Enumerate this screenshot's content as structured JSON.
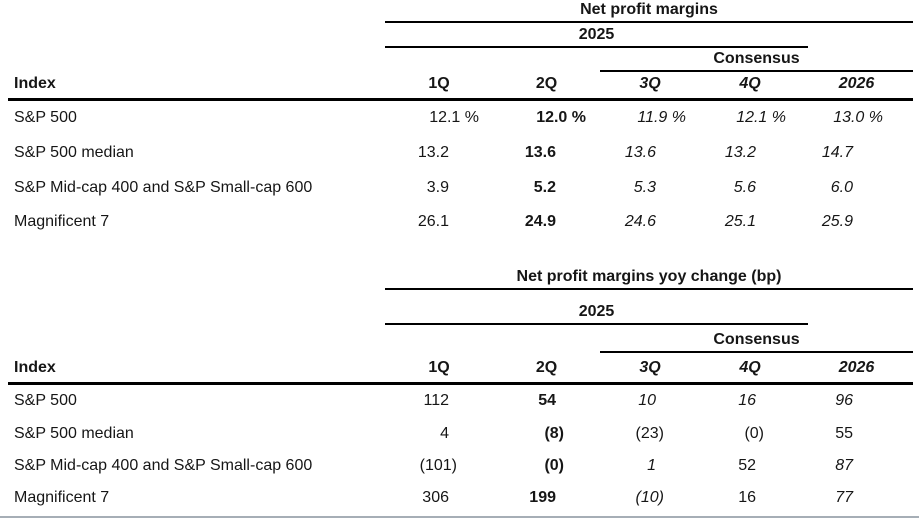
{
  "colors": {
    "highlight": "#aad1ec",
    "footer_rule": "#a6aeb6"
  },
  "tables": [
    {
      "title": "Net profit margins",
      "year_header": "2025",
      "consensus_header": "Consensus",
      "index_header": "Index",
      "columns": [
        {
          "label": "1Q"
        },
        {
          "label": "2Q",
          "highlighted": true
        },
        {
          "label": "3Q",
          "italic": true
        },
        {
          "label": "4Q",
          "italic": true
        },
        {
          "label": "2026",
          "italic": true
        }
      ],
      "rows": [
        {
          "label": "S&P 500",
          "cells": [
            {
              "text": "12.1 %"
            },
            {
              "text": "12.0 %",
              "bold": true
            },
            {
              "text": "11.9 %",
              "italic": true
            },
            {
              "text": "12.1 %",
              "italic": true
            },
            {
              "text": "13.0 %",
              "italic": true
            }
          ]
        },
        {
          "label": "S&P 500 median",
          "cells": [
            {
              "text": "13.2"
            },
            {
              "text": "13.6",
              "bold": true
            },
            {
              "text": "13.6",
              "italic": true
            },
            {
              "text": "13.2",
              "italic": true
            },
            {
              "text": "14.7",
              "italic": true
            }
          ]
        },
        {
          "label": "S&P Mid-cap 400 and S&P Small-cap 600",
          "cells": [
            {
              "text": "3.9"
            },
            {
              "text": "5.2",
              "bold": true
            },
            {
              "text": "5.3",
              "italic": true
            },
            {
              "text": "5.6",
              "italic": true
            },
            {
              "text": "6.0",
              "italic": true
            }
          ]
        },
        {
          "label": "Magnificent 7",
          "cells": [
            {
              "text": "26.1"
            },
            {
              "text": "24.9",
              "bold": true
            },
            {
              "text": "24.6",
              "italic": true
            },
            {
              "text": "25.1",
              "italic": true
            },
            {
              "text": "25.9",
              "italic": true
            }
          ]
        }
      ]
    },
    {
      "title": "Net profit margins yoy change (bp)",
      "year_header": "2025",
      "consensus_header": "Consensus",
      "index_header": "Index",
      "columns": [
        {
          "label": "1Q"
        },
        {
          "label": "2Q",
          "highlighted": true
        },
        {
          "label": "3Q",
          "italic": true
        },
        {
          "label": "4Q",
          "italic": true
        },
        {
          "label": "2026",
          "italic": true
        }
      ],
      "rows": [
        {
          "label": "S&P 500",
          "cells": [
            {
              "text": "112"
            },
            {
              "text": "54",
              "bold": true
            },
            {
              "text": "10",
              "italic": true
            },
            {
              "text": "16",
              "italic": true
            },
            {
              "text": "96",
              "italic": true
            }
          ]
        },
        {
          "label": "S&P 500 median",
          "cells": [
            {
              "text": "4"
            },
            {
              "text": "(8)",
              "bold": true
            },
            {
              "text": "(23)"
            },
            {
              "text": "(0)"
            },
            {
              "text": "55"
            }
          ]
        },
        {
          "label": "S&P Mid-cap 400 and S&P Small-cap 600",
          "cells": [
            {
              "text": "(101)"
            },
            {
              "text": "(0)",
              "bold": true
            },
            {
              "text": "1",
              "italic": true
            },
            {
              "text": "52"
            },
            {
              "text": "87",
              "italic": true
            }
          ]
        },
        {
          "label": "Magnificent 7",
          "cells": [
            {
              "text": "306"
            },
            {
              "text": "199",
              "bold": true
            },
            {
              "text": "(10)",
              "italic": true
            },
            {
              "text": "16"
            },
            {
              "text": "77",
              "italic": true
            }
          ]
        }
      ]
    }
  ]
}
